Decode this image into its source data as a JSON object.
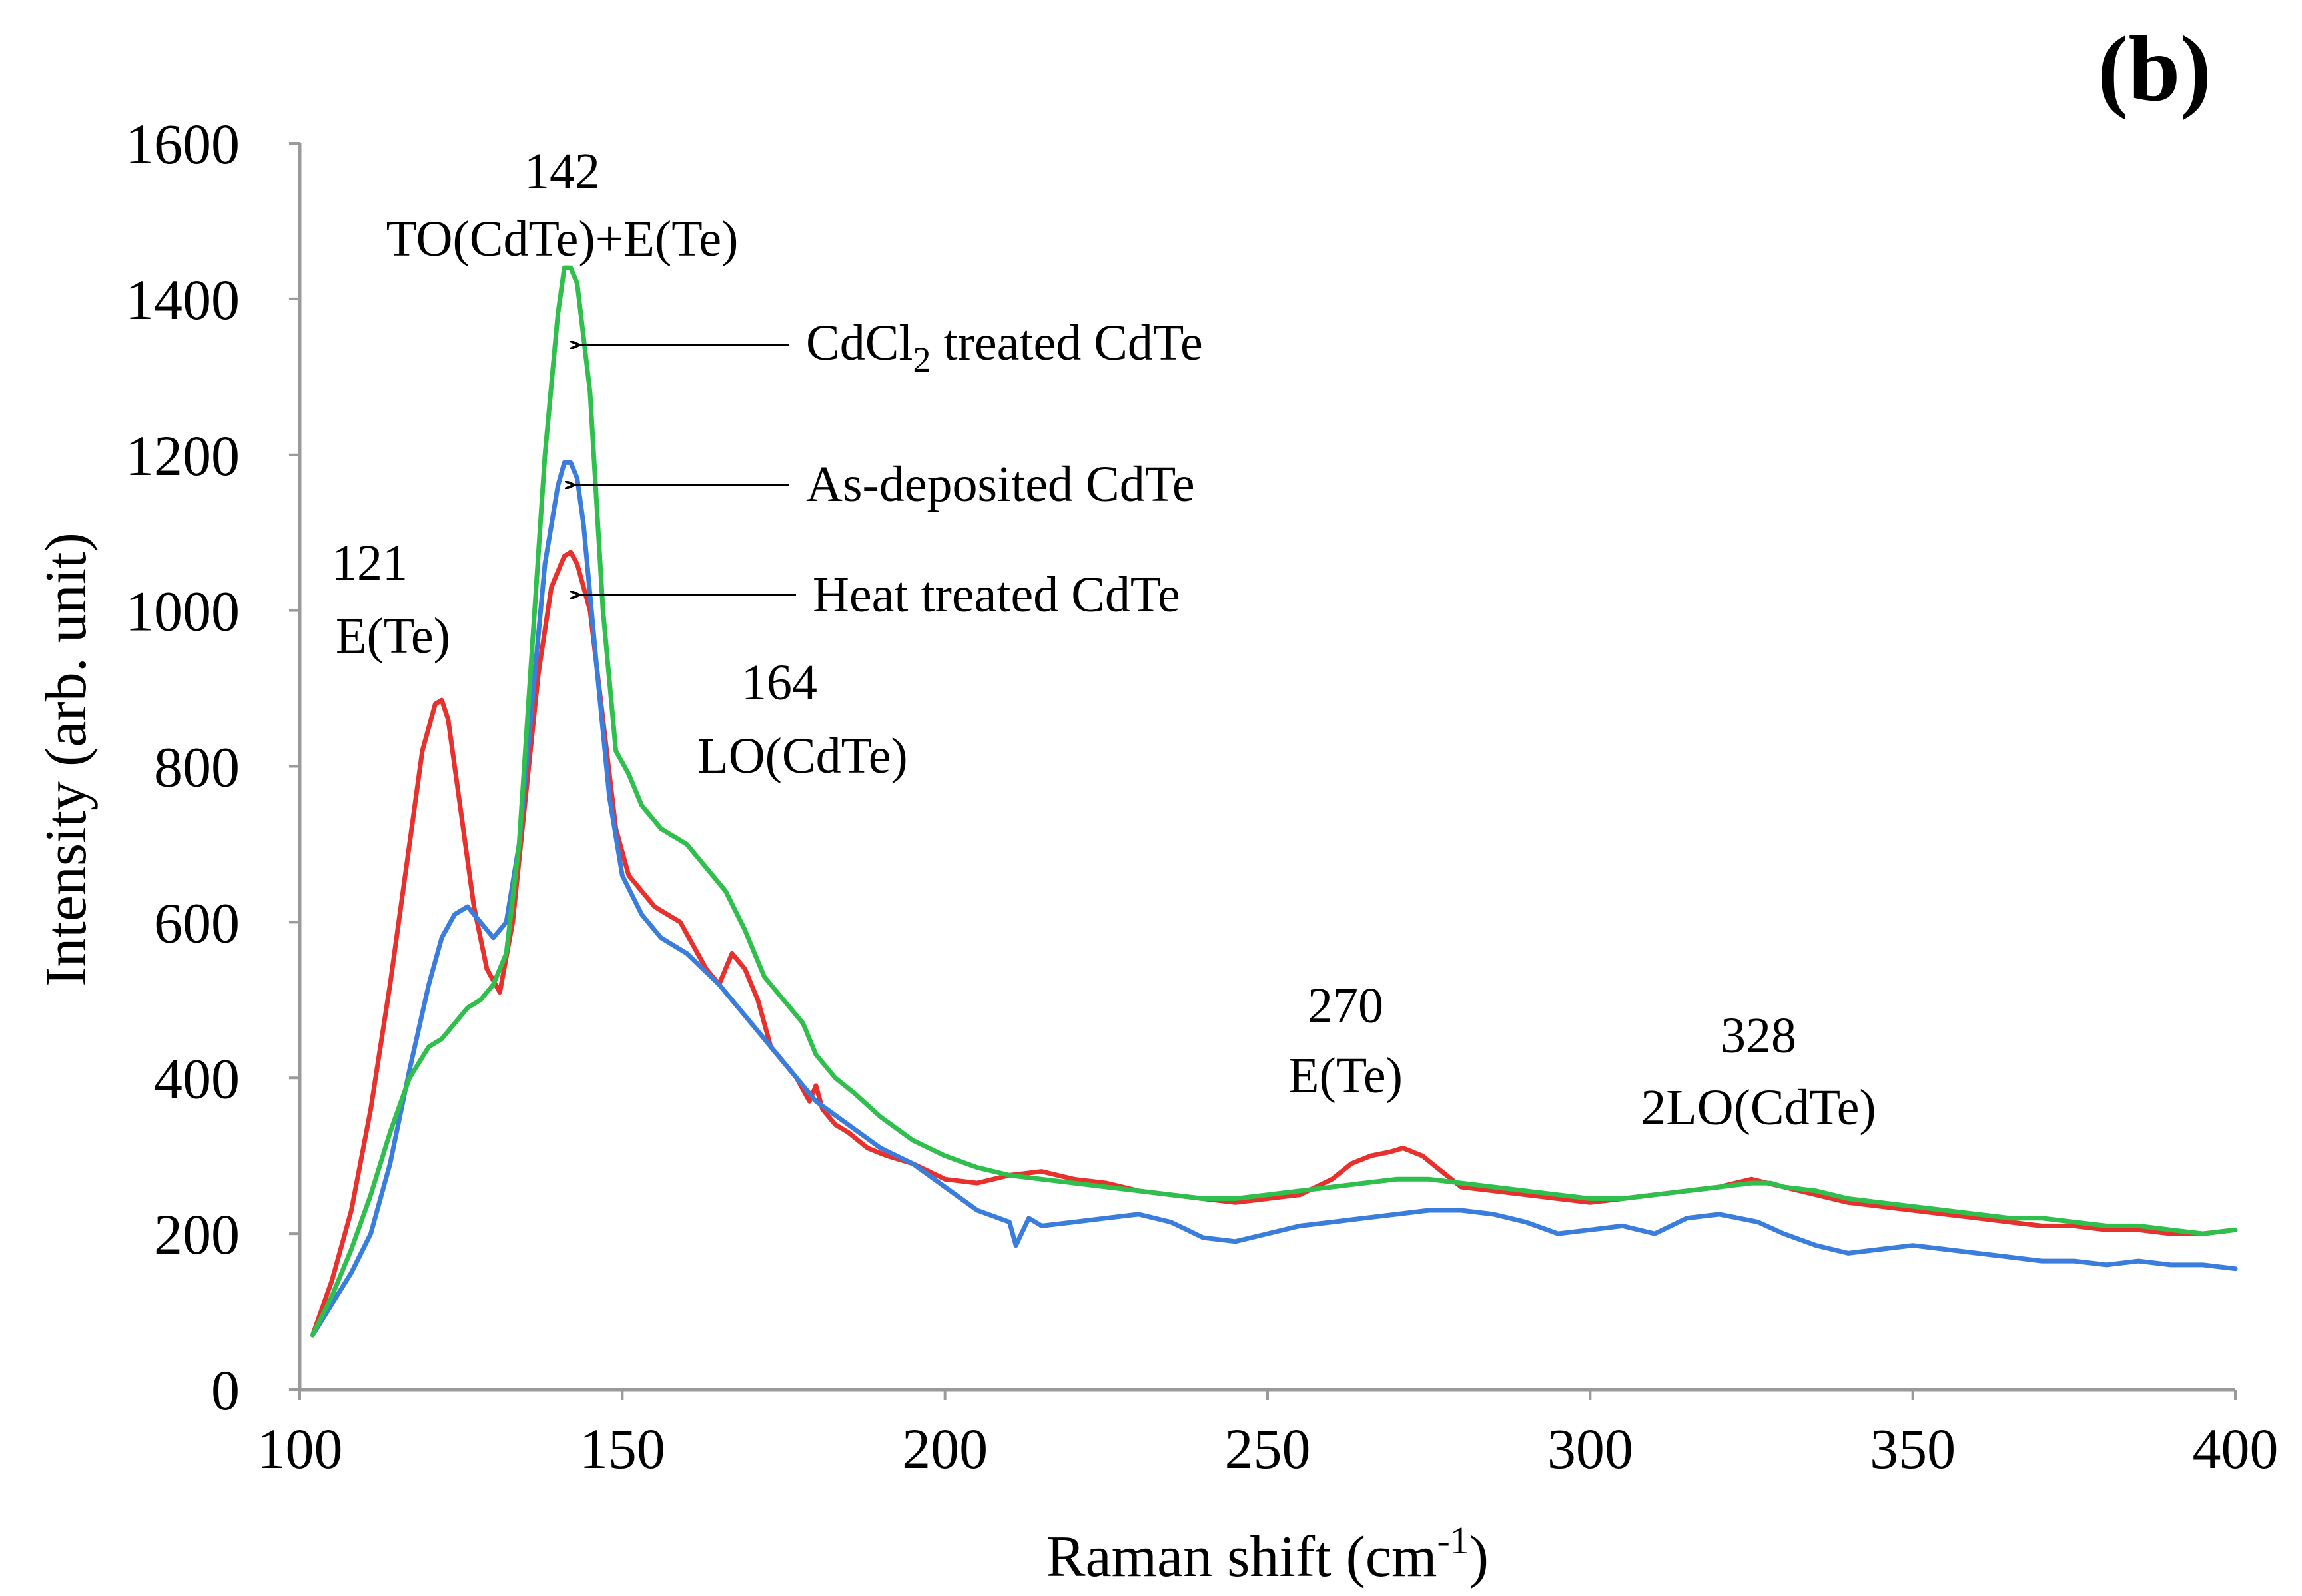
{
  "chart_data": {
    "type": "line",
    "panel_label": "(b)",
    "xlabel": "Raman shift (cm",
    "xlabel_sup": "-1",
    "xlabel_end": ")",
    "ylabel": "Intensity (arb. unit)",
    "xlim": [
      100,
      400
    ],
    "ylim": [
      0,
      1600
    ],
    "xticks": [
      "100",
      "150",
      "200",
      "250",
      "300",
      "350",
      "400"
    ],
    "yticks": [
      "0",
      "200",
      "400",
      "600",
      "800",
      "1000",
      "1200",
      "1400",
      "1600"
    ],
    "grid": false,
    "series": [
      {
        "name": "Heat treated CdTe",
        "color": "#e8302c",
        "x": [
          102,
          105,
          108,
          111,
          114,
          117,
          119,
          121,
          122,
          123,
          125,
          127,
          129,
          131,
          133,
          135,
          137,
          139,
          141,
          142,
          143,
          145,
          147,
          149,
          151,
          153,
          155,
          157,
          159,
          161,
          163,
          165,
          167,
          169,
          171,
          173,
          175,
          177,
          179,
          180,
          181,
          183,
          185,
          188,
          191,
          195,
          200,
          205,
          210,
          215,
          220,
          225,
          230,
          235,
          240,
          245,
          250,
          255,
          260,
          263,
          266,
          269,
          271,
          274,
          277,
          280,
          285,
          290,
          295,
          300,
          305,
          310,
          315,
          320,
          325,
          330,
          335,
          340,
          345,
          350,
          355,
          360,
          365,
          370,
          375,
          380,
          385,
          390,
          395,
          400
        ],
        "y": [
          70,
          140,
          230,
          360,
          520,
          700,
          820,
          880,
          885,
          860,
          740,
          620,
          540,
          510,
          600,
          760,
          920,
          1030,
          1070,
          1075,
          1060,
          1000,
          860,
          720,
          660,
          640,
          620,
          610,
          600,
          570,
          540,
          520,
          560,
          540,
          500,
          440,
          420,
          400,
          370,
          390,
          360,
          340,
          330,
          310,
          300,
          290,
          270,
          265,
          275,
          280,
          270,
          265,
          255,
          250,
          245,
          240,
          245,
          250,
          270,
          290,
          300,
          305,
          310,
          300,
          280,
          260,
          255,
          250,
          245,
          240,
          245,
          250,
          255,
          260,
          270,
          260,
          250,
          240,
          235,
          230,
          225,
          220,
          215,
          210,
          210,
          205,
          205,
          200,
          200,
          205
        ]
      },
      {
        "name": "As-deposited CdTe",
        "color": "#3a7ddc",
        "x": [
          102,
          105,
          108,
          111,
          114,
          117,
          120,
          122,
          124,
          126,
          128,
          130,
          132,
          134,
          136,
          138,
          140,
          141,
          142,
          143,
          144,
          146,
          148,
          150,
          153,
          156,
          160,
          165,
          170,
          175,
          180,
          185,
          190,
          195,
          200,
          205,
          210,
          211,
          213,
          215,
          220,
          225,
          230,
          235,
          240,
          245,
          250,
          255,
          260,
          265,
          270,
          275,
          280,
          285,
          290,
          295,
          300,
          305,
          310,
          315,
          320,
          323,
          326,
          330,
          335,
          340,
          345,
          350,
          355,
          360,
          365,
          370,
          375,
          380,
          385,
          390,
          395,
          400
        ],
        "y": [
          70,
          110,
          150,
          200,
          290,
          410,
          520,
          580,
          610,
          620,
          600,
          580,
          600,
          700,
          880,
          1060,
          1160,
          1190,
          1190,
          1170,
          1110,
          930,
          760,
          660,
          610,
          580,
          560,
          520,
          470,
          420,
          370,
          340,
          310,
          290,
          260,
          230,
          215,
          185,
          220,
          210,
          215,
          220,
          225,
          215,
          195,
          190,
          200,
          210,
          215,
          220,
          225,
          230,
          230,
          225,
          215,
          200,
          205,
          210,
          200,
          220,
          225,
          220,
          215,
          200,
          185,
          175,
          180,
          185,
          180,
          175,
          170,
          165,
          165,
          160,
          165,
          160,
          160,
          155
        ]
      },
      {
        "name": "CdCl2 treated CdTe",
        "color": "#2fbf4c",
        "x": [
          102,
          105,
          108,
          111,
          114,
          117,
          120,
          122,
          124,
          126,
          128,
          130,
          132,
          134,
          136,
          138,
          140,
          141,
          142,
          143,
          145,
          147,
          149,
          151,
          153,
          156,
          160,
          163,
          166,
          169,
          172,
          175,
          178,
          180,
          183,
          186,
          190,
          195,
          200,
          205,
          210,
          215,
          220,
          225,
          230,
          235,
          240,
          245,
          250,
          255,
          260,
          265,
          270,
          275,
          280,
          285,
          290,
          295,
          300,
          305,
          310,
          315,
          320,
          325,
          328,
          330,
          335,
          340,
          345,
          350,
          355,
          360,
          365,
          370,
          375,
          380,
          385,
          390,
          395,
          400
        ],
        "y": [
          70,
          120,
          180,
          250,
          330,
          400,
          440,
          450,
          470,
          490,
          500,
          520,
          560,
          700,
          950,
          1200,
          1380,
          1440,
          1440,
          1420,
          1280,
          1000,
          820,
          790,
          750,
          720,
          700,
          670,
          640,
          590,
          530,
          500,
          470,
          430,
          400,
          380,
          350,
          320,
          300,
          285,
          275,
          270,
          265,
          260,
          255,
          250,
          245,
          245,
          250,
          255,
          260,
          265,
          270,
          270,
          265,
          260,
          255,
          250,
          245,
          245,
          250,
          255,
          260,
          265,
          265,
          260,
          255,
          245,
          240,
          235,
          230,
          225,
          220,
          220,
          215,
          210,
          210,
          205,
          200,
          205
        ]
      }
    ],
    "annotations": {
      "a142_num": "142",
      "a142_label": "TO(CdTe)+E(Te)",
      "a121_num": "121",
      "a121_label": "E(Te)",
      "a164_num": "164",
      "a164_label": "LO(CdTe)",
      "a270_num": "270",
      "a270_label": "E(Te)",
      "a328_num": "328",
      "a328_label": "2LO(CdTe)",
      "label_cdcl2_pre": "CdCl",
      "label_cdcl2_sub": "2",
      "label_cdcl2_post": " treated CdTe",
      "label_asdep": "As-deposited CdTe",
      "label_heat": "Heat treated CdTe"
    }
  }
}
